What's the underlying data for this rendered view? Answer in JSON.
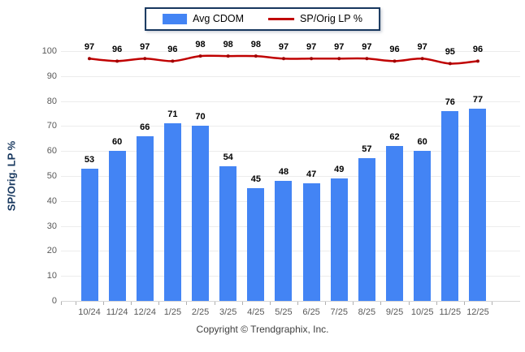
{
  "legend": {
    "items": [
      {
        "label": "Avg CDOM",
        "type": "bar",
        "color": "#4384f4"
      },
      {
        "label": "SP/Orig LP %",
        "type": "line",
        "color": "#c00000"
      }
    ]
  },
  "footer": {
    "text": "Copyright © Trendgraphix, Inc."
  },
  "chart_data": {
    "type": "bar",
    "categories": [
      "10/24",
      "11/24",
      "12/24",
      "1/25",
      "2/25",
      "3/25",
      "4/25",
      "5/25",
      "6/25",
      "7/25",
      "8/25",
      "9/25",
      "10/25",
      "11/25",
      "12/25"
    ],
    "series": [
      {
        "name": "Avg CDOM",
        "type": "bar",
        "color": "#4384f4",
        "values": [
          53,
          60,
          66,
          71,
          70,
          54,
          45,
          48,
          47,
          49,
          57,
          62,
          60,
          76,
          77
        ]
      },
      {
        "name": "SP/Orig LP %",
        "type": "line",
        "color": "#c00000",
        "marker_color": "#a00000",
        "values": [
          97,
          96,
          97,
          96,
          98,
          98,
          98,
          97,
          97,
          97,
          97,
          96,
          97,
          95,
          96
        ]
      }
    ],
    "title": "",
    "xlabel": "",
    "ylabel": "SP/Orig. LP %",
    "ylim": [
      0,
      100
    ],
    "yticks": [
      0,
      10,
      20,
      30,
      40,
      50,
      60,
      70,
      80,
      90,
      100
    ],
    "grid": true,
    "grid_color": "#ececec",
    "axis_line_color": "#d6d6d6",
    "legend_position": "top"
  }
}
